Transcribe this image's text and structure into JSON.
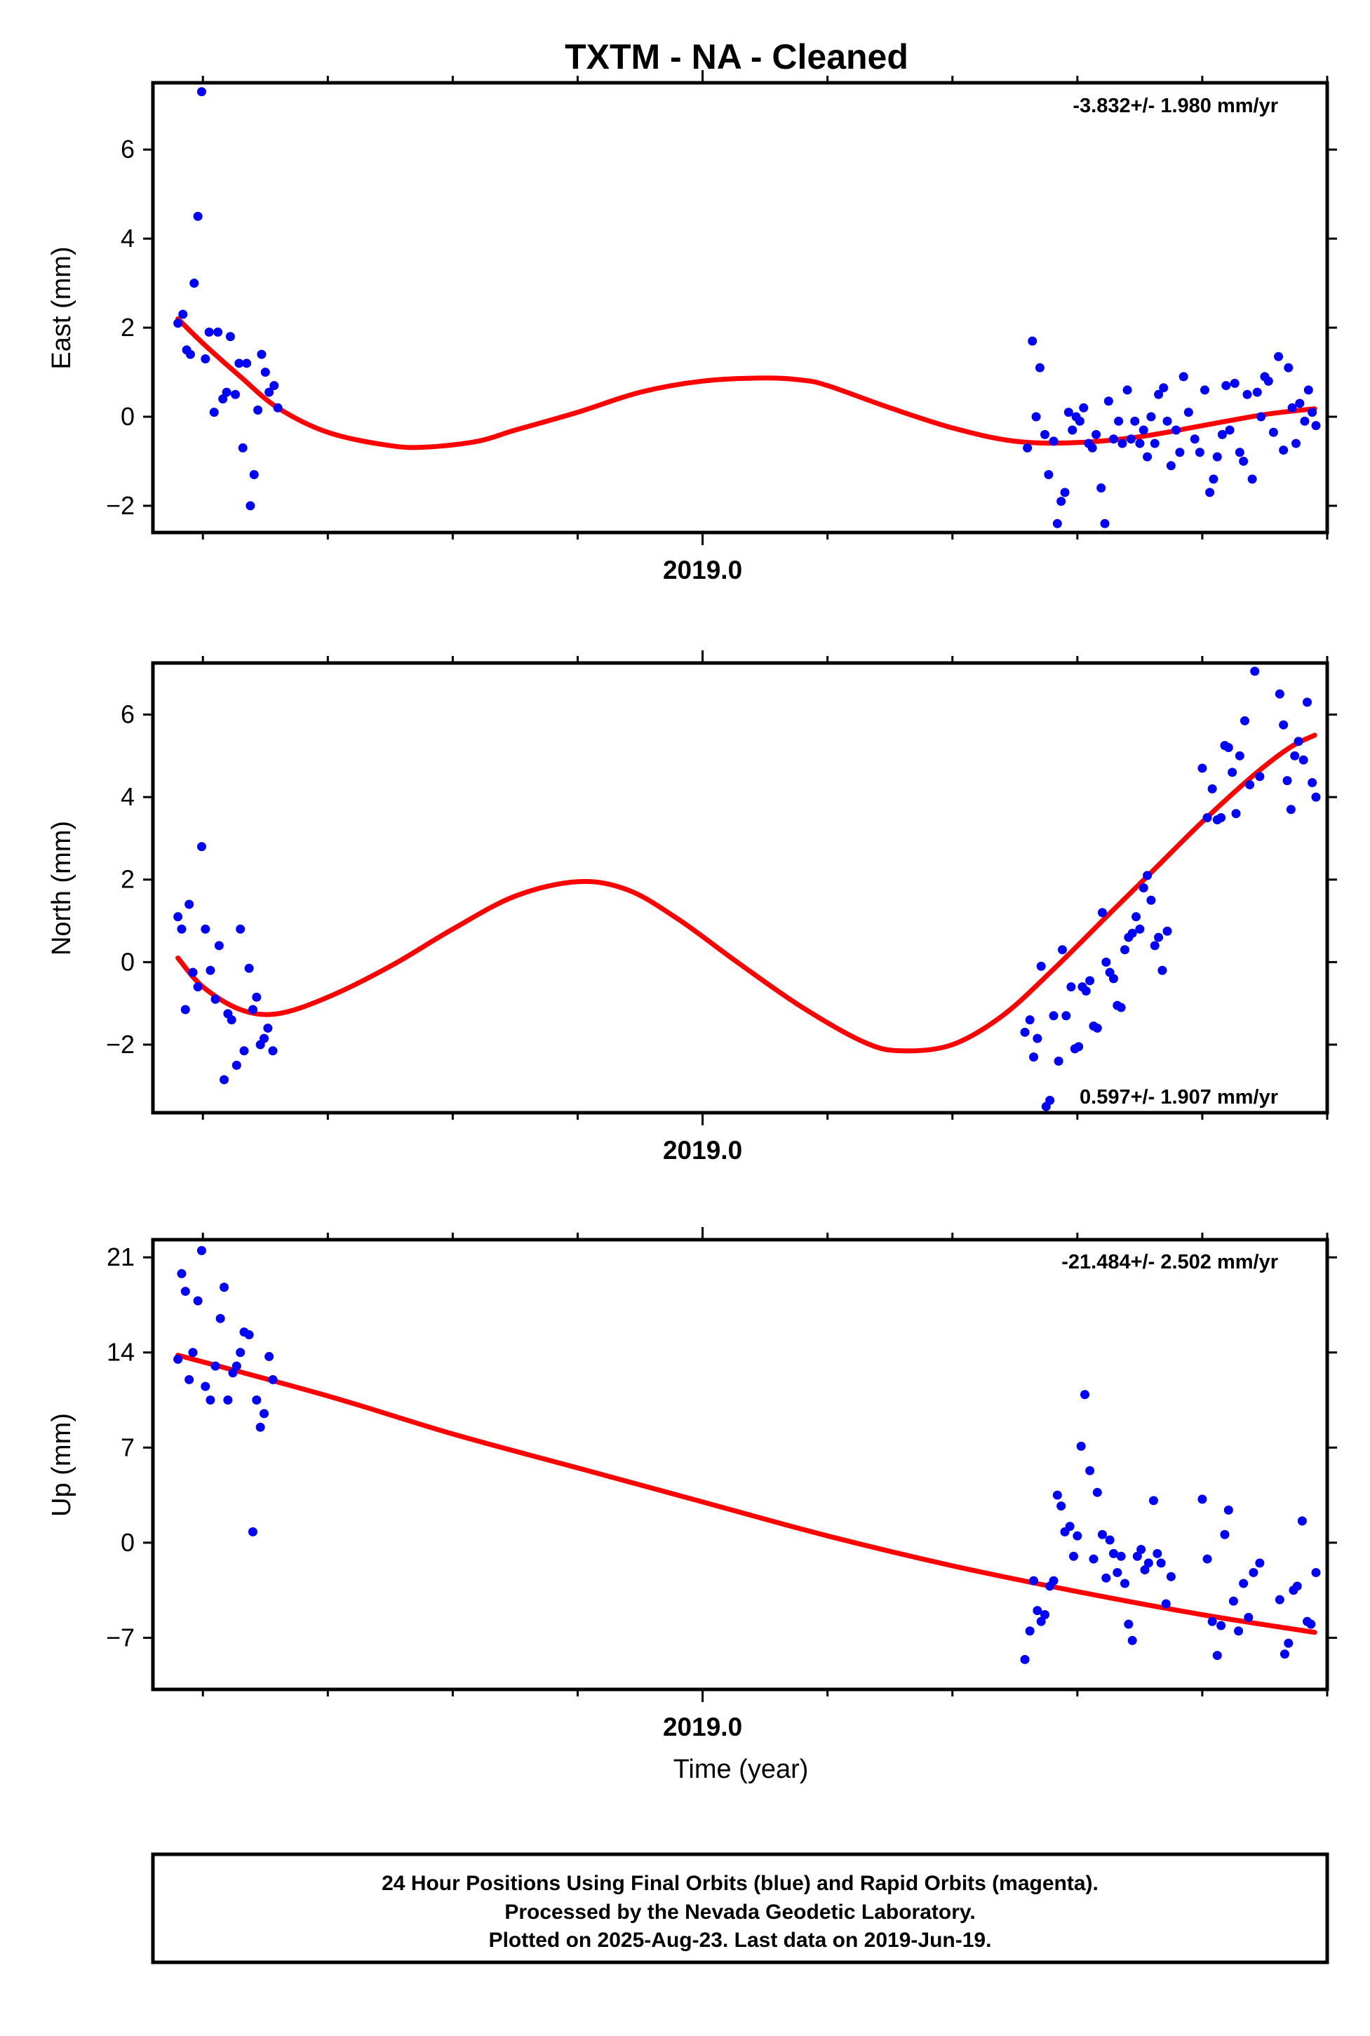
{
  "title": "TXTM  - NA - Cleaned",
  "x_axis_label": "Time (year)",
  "footer": {
    "line1": "24 Hour Positions Using Final Orbits (blue) and Rapid Orbits (magenta).",
    "line2": "Processed by the Nevada Geodetic Laboratory.",
    "line3": "Plotted on 2025-Aug-23. Last data on 2019-Jun-19."
  },
  "colors": {
    "points": "#0000ff",
    "fit": "#ff0000",
    "frame": "#000000"
  },
  "chart_data": [
    {
      "type": "scatter",
      "ylabel": "East (mm)",
      "rate_label": "-3.832+/- 1.980 mm/yr",
      "rate_position": "top-right",
      "x_tick_labels": [
        "2019.0"
      ],
      "x_tick_values": [
        2019.0
      ],
      "xlim": [
        2018.56,
        2019.5
      ],
      "ylim": [
        -2.6,
        7.5
      ],
      "yticks": [
        -2,
        0,
        2,
        4,
        6
      ],
      "points": {
        "name": "",
        "x": [
          2018.58,
          2018.584,
          2018.587,
          2018.59,
          2018.593,
          2018.596,
          2018.599,
          2018.602,
          2018.605,
          2018.609,
          2018.612,
          2018.616,
          2018.619,
          2018.622,
          2018.626,
          2018.629,
          2018.632,
          2018.635,
          2018.638,
          2018.641,
          2018.644,
          2018.647,
          2018.65,
          2018.653,
          2018.657,
          2018.66,
          2019.26,
          2019.264,
          2019.267,
          2019.27,
          2019.274,
          2019.277,
          2019.281,
          2019.284,
          2019.287,
          2019.29,
          2019.293,
          2019.296,
          2019.299,
          2019.302,
          2019.305,
          2019.309,
          2019.312,
          2019.315,
          2019.319,
          2019.322,
          2019.325,
          2019.329,
          2019.333,
          2019.336,
          2019.34,
          2019.343,
          2019.346,
          2019.35,
          2019.353,
          2019.356,
          2019.359,
          2019.362,
          2019.365,
          2019.369,
          2019.372,
          2019.375,
          2019.379,
          2019.382,
          2019.385,
          2019.389,
          2019.394,
          2019.398,
          2019.402,
          2019.406,
          2019.409,
          2019.412,
          2019.416,
          2019.419,
          2019.422,
          2019.426,
          2019.43,
          2019.433,
          2019.436,
          2019.44,
          2019.444,
          2019.447,
          2019.45,
          2019.453,
          2019.457,
          2019.461,
          2019.465,
          2019.469,
          2019.472,
          2019.475,
          2019.478,
          2019.482,
          2019.485,
          2019.488,
          2019.491
        ],
        "y": [
          2.1,
          2.3,
          1.5,
          1.4,
          3.0,
          4.5,
          7.3,
          1.3,
          1.9,
          0.1,
          1.9,
          0.4,
          0.55,
          1.8,
          0.5,
          1.2,
          -0.7,
          1.2,
          -2.0,
          -1.3,
          0.15,
          1.4,
          1.0,
          0.55,
          0.7,
          0.2,
          -0.7,
          1.7,
          0.0,
          1.1,
          -0.4,
          -1.3,
          -0.55,
          -2.4,
          -1.9,
          -1.7,
          0.1,
          -0.3,
          0.0,
          -0.1,
          0.2,
          -0.6,
          -0.7,
          -0.4,
          -1.6,
          -2.4,
          0.35,
          -0.5,
          -0.1,
          -0.6,
          0.6,
          -0.5,
          -0.1,
          -0.6,
          -0.3,
          -0.9,
          0.0,
          -0.6,
          0.5,
          0.65,
          -0.1,
          -1.1,
          -0.3,
          -0.8,
          0.9,
          0.1,
          -0.5,
          -0.8,
          0.6,
          -1.7,
          -1.4,
          -0.9,
          -0.4,
          0.7,
          -0.3,
          0.75,
          -0.8,
          -1.0,
          0.5,
          -1.4,
          0.55,
          0.0,
          0.9,
          0.8,
          -0.35,
          1.35,
          -0.75,
          1.1,
          0.2,
          -0.6,
          0.3,
          -0.1,
          0.6,
          0.1,
          -0.2
        ]
      },
      "fit": {
        "name": "",
        "x": [
          2018.58,
          2018.6,
          2018.63,
          2018.66,
          2018.7,
          2018.75,
          2018.78,
          2018.82,
          2018.85,
          2018.9,
          2018.95,
          2019.0,
          2019.05,
          2019.08,
          2019.1,
          2019.15,
          2019.2,
          2019.25,
          2019.3,
          2019.35,
          2019.4,
          2019.45,
          2019.49
        ],
        "y": [
          2.2,
          1.65,
          0.9,
          0.2,
          -0.35,
          -0.65,
          -0.68,
          -0.55,
          -0.3,
          0.1,
          0.55,
          0.8,
          0.87,
          0.82,
          0.7,
          0.2,
          -0.25,
          -0.55,
          -0.58,
          -0.45,
          -0.2,
          0.05,
          0.18
        ]
      }
    },
    {
      "type": "scatter",
      "ylabel": "North (mm)",
      "rate_label": "0.597+/- 1.907 mm/yr",
      "rate_position": "bottom-right",
      "x_tick_labels": [
        "2019.0"
      ],
      "x_tick_values": [
        2019.0
      ],
      "xlim": [
        2018.56,
        2019.5
      ],
      "ylim": [
        -3.65,
        7.25
      ],
      "yticks": [
        -2,
        0,
        2,
        4,
        6
      ],
      "points": {
        "name": "",
        "x": [
          2018.58,
          2018.583,
          2018.586,
          2018.589,
          2018.592,
          2018.596,
          2018.599,
          2018.602,
          2018.606,
          2018.61,
          2018.613,
          2018.617,
          2018.62,
          2018.623,
          2018.627,
          2018.63,
          2018.633,
          2018.637,
          2018.64,
          2018.643,
          2018.646,
          2018.649,
          2018.652,
          2018.656,
          2019.258,
          2019.262,
          2019.265,
          2019.268,
          2019.271,
          2019.275,
          2019.278,
          2019.281,
          2019.285,
          2019.288,
          2019.291,
          2019.295,
          2019.298,
          2019.301,
          2019.304,
          2019.307,
          2019.31,
          2019.313,
          2019.316,
          2019.32,
          2019.323,
          2019.326,
          2019.329,
          2019.332,
          2019.335,
          2019.338,
          2019.341,
          2019.344,
          2019.347,
          2019.35,
          2019.353,
          2019.356,
          2019.359,
          2019.362,
          2019.365,
          2019.368,
          2019.372,
          2019.4,
          2019.404,
          2019.408,
          2019.412,
          2019.415,
          2019.418,
          2019.421,
          2019.424,
          2019.427,
          2019.43,
          2019.434,
          2019.438,
          2019.442,
          2019.446,
          2019.462,
          2019.465,
          2019.468,
          2019.471,
          2019.474,
          2019.477,
          2019.481,
          2019.484,
          2019.488,
          2019.491
        ],
        "y": [
          1.1,
          0.8,
          -1.15,
          1.4,
          -0.25,
          -0.6,
          2.8,
          0.8,
          -0.2,
          -0.9,
          0.4,
          -2.85,
          -1.25,
          -1.4,
          -2.5,
          0.8,
          -2.15,
          -0.15,
          -1.15,
          -0.85,
          -2.0,
          -1.85,
          -1.6,
          -2.15,
          -1.7,
          -1.4,
          -2.3,
          -1.85,
          -0.1,
          -3.5,
          -3.35,
          -1.3,
          -2.4,
          0.3,
          -1.3,
          -0.6,
          -2.1,
          -2.05,
          -0.6,
          -0.7,
          -0.45,
          -1.55,
          -1.6,
          1.2,
          0.0,
          -0.25,
          -0.4,
          -1.05,
          -1.1,
          0.3,
          0.6,
          0.7,
          1.1,
          0.8,
          1.8,
          2.1,
          1.5,
          0.4,
          0.6,
          -0.2,
          0.75,
          4.7,
          3.5,
          4.2,
          3.45,
          3.5,
          5.25,
          5.2,
          4.6,
          3.6,
          5.0,
          5.85,
          4.3,
          7.05,
          4.5,
          6.5,
          5.75,
          4.4,
          3.7,
          5.0,
          5.35,
          4.9,
          6.3,
          4.35,
          4.0
        ]
      },
      "fit": {
        "name": "",
        "x": [
          2018.58,
          2018.6,
          2018.63,
          2018.66,
          2018.7,
          2018.75,
          2018.8,
          2018.85,
          2018.9,
          2018.94,
          2018.98,
          2019.03,
          2019.08,
          2019.13,
          2019.16,
          2019.2,
          2019.24,
          2019.28,
          2019.32,
          2019.36,
          2019.4,
          2019.44,
          2019.47,
          2019.49
        ],
        "y": [
          0.1,
          -0.6,
          -1.15,
          -1.25,
          -0.85,
          -0.1,
          0.8,
          1.6,
          1.95,
          1.75,
          1.05,
          -0.05,
          -1.1,
          -1.95,
          -2.15,
          -2.0,
          -1.3,
          -0.2,
          1.0,
          2.2,
          3.4,
          4.5,
          5.2,
          5.5
        ]
      }
    },
    {
      "type": "scatter",
      "ylabel": "Up (mm)",
      "rate_label": "-21.484+/- 2.502 mm/yr",
      "rate_position": "top-right",
      "x_tick_labels": [
        "2019.0"
      ],
      "x_tick_values": [
        2019.0
      ],
      "xlim": [
        2018.56,
        2019.5
      ],
      "ylim": [
        -10.8,
        22.3
      ],
      "yticks": [
        -7,
        0,
        7,
        14,
        21
      ],
      "points": {
        "name": "",
        "x": [
          2018.58,
          2018.583,
          2018.586,
          2018.589,
          2018.592,
          2018.596,
          2018.599,
          2018.602,
          2018.606,
          2018.61,
          2018.614,
          2018.617,
          2018.62,
          2018.624,
          2018.627,
          2018.63,
          2018.633,
          2018.637,
          2018.64,
          2018.643,
          2018.646,
          2018.649,
          2018.653,
          2018.656,
          2019.258,
          2019.262,
          2019.265,
          2019.268,
          2019.271,
          2019.274,
          2019.278,
          2019.281,
          2019.284,
          2019.287,
          2019.29,
          2019.294,
          2019.297,
          2019.3,
          2019.303,
          2019.306,
          2019.31,
          2019.313,
          2019.316,
          2019.32,
          2019.323,
          2019.326,
          2019.329,
          2019.332,
          2019.335,
          2019.338,
          2019.341,
          2019.344,
          2019.348,
          2019.351,
          2019.354,
          2019.357,
          2019.361,
          2019.364,
          2019.367,
          2019.371,
          2019.375,
          2019.4,
          2019.404,
          2019.408,
          2019.412,
          2019.415,
          2019.418,
          2019.421,
          2019.425,
          2019.429,
          2019.433,
          2019.437,
          2019.441,
          2019.446,
          2019.462,
          2019.466,
          2019.469,
          2019.473,
          2019.476,
          2019.48,
          2019.484,
          2019.487,
          2019.491
        ],
        "y": [
          13.5,
          19.8,
          18.5,
          12.0,
          14.0,
          17.8,
          21.5,
          11.5,
          10.5,
          13.0,
          16.5,
          18.8,
          10.5,
          12.5,
          13.0,
          14.0,
          15.5,
          15.3,
          0.8,
          10.5,
          8.5,
          9.5,
          13.7,
          12.0,
          -8.6,
          -6.5,
          -2.8,
          -5.0,
          -5.8,
          -5.3,
          -3.2,
          -2.8,
          3.5,
          2.7,
          0.8,
          1.2,
          -1.0,
          0.5,
          7.1,
          10.9,
          5.3,
          -1.2,
          3.7,
          0.6,
          -2.6,
          0.2,
          -0.8,
          -2.2,
          -1.0,
          -3.0,
          -6.0,
          -7.2,
          -1.0,
          -0.5,
          -2.0,
          -1.5,
          3.1,
          -0.8,
          -1.5,
          -4.5,
          -2.5,
          3.2,
          -1.2,
          -5.8,
          -8.3,
          -6.1,
          0.6,
          2.4,
          -4.3,
          -6.5,
          -3.0,
          -5.5,
          -2.2,
          -1.5,
          -4.2,
          -8.2,
          -7.4,
          -3.5,
          -3.2,
          1.6,
          -5.8,
          -6.0,
          -2.2
        ]
      },
      "fit": {
        "name": "",
        "x": [
          2018.58,
          2018.7,
          2018.8,
          2018.9,
          2019.0,
          2019.1,
          2019.2,
          2019.3,
          2019.4,
          2019.49
        ],
        "y": [
          13.8,
          10.8,
          8.0,
          5.5,
          3.0,
          0.5,
          -1.7,
          -3.6,
          -5.3,
          -6.6
        ]
      }
    }
  ]
}
